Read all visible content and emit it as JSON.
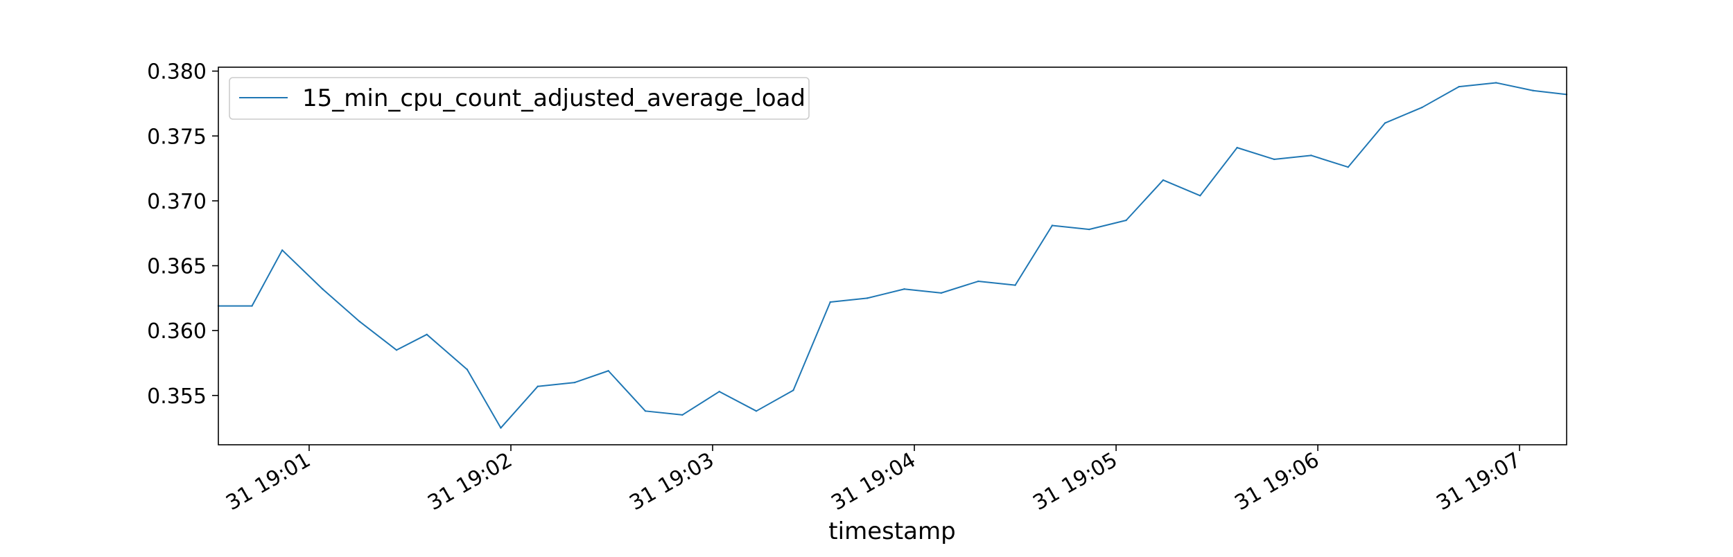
{
  "chart_data": {
    "type": "line",
    "title": "",
    "xlabel": "timestamp",
    "ylabel": "",
    "x_ticks": [
      "31 19:01",
      "31 19:02",
      "31 19:03",
      "31 19:04",
      "31 19:05",
      "31 19:06",
      "31 19:07"
    ],
    "y_ticks": [
      "0.355",
      "0.360",
      "0.365",
      "0.370",
      "0.375",
      "0.380"
    ],
    "y_tick_values": [
      0.355,
      0.36,
      0.365,
      0.37,
      0.375,
      0.38
    ],
    "xlim": [
      "19:00:33",
      "19:07:14"
    ],
    "ylim": [
      0.3512,
      0.3803
    ],
    "grid": false,
    "legend": {
      "placement": "upper left"
    },
    "x": [
      "19:00:33",
      "19:00:43",
      "19:00:52",
      "19:01:04",
      "19:01:15",
      "19:01:26",
      "19:01:35",
      "19:01:47",
      "19:01:57",
      "19:02:08",
      "19:02:19",
      "19:02:29",
      "19:02:40",
      "19:02:51",
      "19:03:02",
      "19:03:13",
      "19:03:24",
      "19:03:35",
      "19:03:46",
      "19:03:57",
      "19:04:08",
      "19:04:19",
      "19:04:30",
      "19:04:41",
      "19:04:52",
      "19:05:03",
      "19:05:14",
      "19:05:25",
      "19:05:36",
      "19:05:47",
      "19:05:58",
      "19:06:09",
      "19:06:20",
      "19:06:31",
      "19:06:42",
      "19:06:53",
      "19:07:04",
      "19:07:14"
    ],
    "series": [
      {
        "name": "15_min_cpu_count_adjusted_average_load",
        "color": "#1f77b4",
        "values": [
          0.3619,
          0.3619,
          0.3662,
          0.3632,
          0.3607,
          0.3585,
          0.3597,
          0.357,
          0.3525,
          0.3557,
          0.356,
          0.3569,
          0.3538,
          0.3535,
          0.3553,
          0.3538,
          0.3554,
          0.3622,
          0.3625,
          0.3632,
          0.3629,
          0.3638,
          0.3635,
          0.3681,
          0.3678,
          0.3685,
          0.3716,
          0.3704,
          0.3741,
          0.3732,
          0.3735,
          0.3726,
          0.376,
          0.3772,
          0.3788,
          0.3791,
          0.3785,
          0.3782
        ]
      }
    ]
  }
}
